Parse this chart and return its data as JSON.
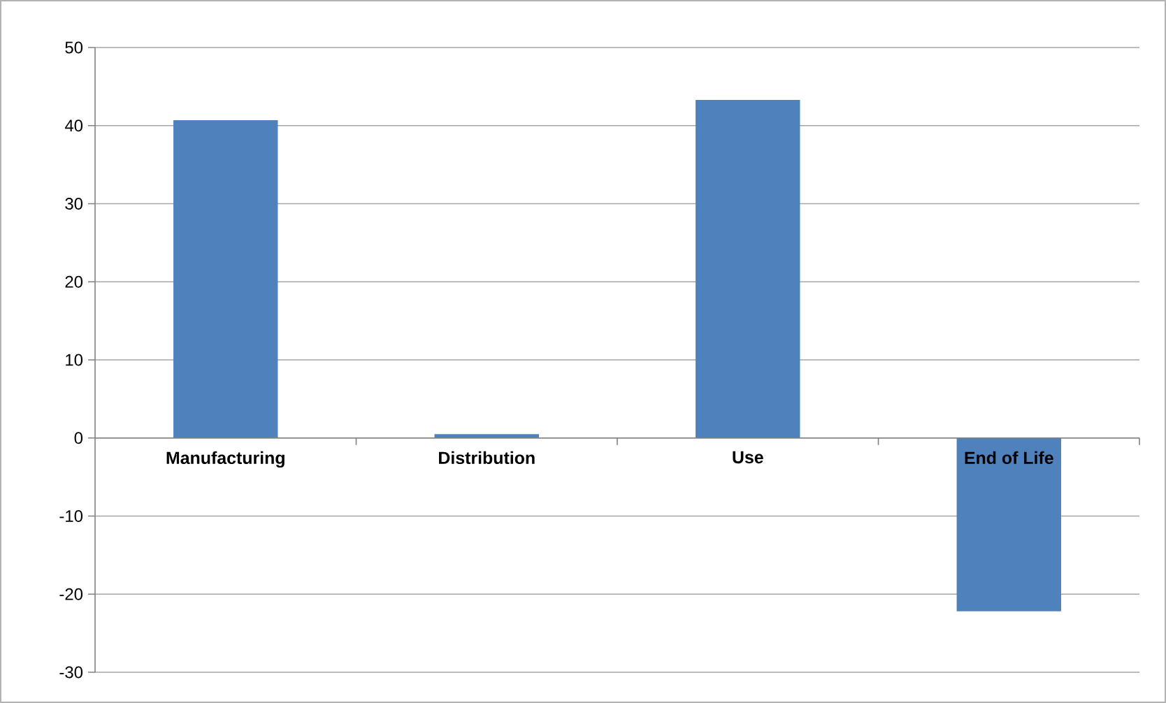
{
  "chart_data": {
    "type": "bar",
    "categories": [
      "Manufacturing",
      "Distribution",
      "Use",
      "End of Life"
    ],
    "values": [
      40.7,
      0.5,
      43.3,
      -22.2
    ],
    "color": "#4f81bd",
    "ylim": [
      -30,
      50
    ],
    "yticks": [
      -30,
      -20,
      -10,
      0,
      10,
      20,
      30,
      40,
      50
    ],
    "grid": "y"
  }
}
